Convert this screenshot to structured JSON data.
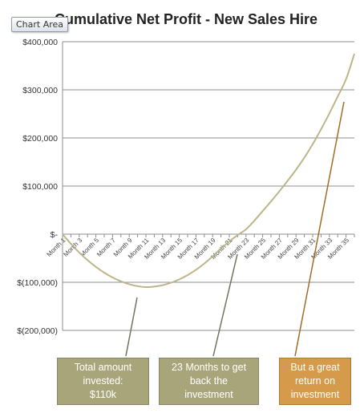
{
  "tooltip": "Chart Area",
  "chart_data": {
    "type": "line",
    "title": "Cumulative Net Profit - New Sales Hire",
    "xlabel": "",
    "ylabel": "",
    "ylim": [
      -200000,
      400000
    ],
    "yticks": [
      400000,
      300000,
      200000,
      100000,
      0,
      -100000,
      -200000
    ],
    "ytick_labels": [
      "$400,000",
      "$300,000",
      "$200,000",
      "$100,000",
      "$-",
      "$(100,000)",
      "$(200,000)"
    ],
    "xtick_labels": [
      "Month 1",
      "Month 3",
      "Month 5",
      "Month 7",
      "Month 9",
      "Month 11",
      "Month 13",
      "Month 15",
      "Month 17",
      "Month 19",
      "Month 21",
      "Month 23",
      "Month 25",
      "Month 27",
      "Month 29",
      "Month 31",
      "Month 33",
      "Month 35"
    ],
    "grid": "horizontal",
    "series": [
      {
        "color": "#bcb68a",
        "x": [
          1,
          2,
          3,
          4,
          5,
          6,
          7,
          8,
          9,
          10,
          11,
          12,
          13,
          14,
          15,
          16,
          17,
          18,
          19,
          20,
          21,
          22,
          23,
          24,
          25,
          26,
          27,
          28,
          29,
          30,
          31,
          32,
          33,
          34,
          35,
          36
        ],
        "y": [
          0,
          -20000,
          -38000,
          -54000,
          -68000,
          -80000,
          -90000,
          -98000,
          -104000,
          -108000,
          -110000,
          -109000,
          -106000,
          -101000,
          -94000,
          -85000,
          -74000,
          -61000,
          -46000,
          -30000,
          -15000,
          -2000,
          10000,
          28000,
          48000,
          68000,
          89000,
          111000,
          134000,
          159000,
          187000,
          218000,
          251000,
          286000,
          322000,
          375000
        ]
      }
    ]
  },
  "callouts": [
    {
      "text": "Total amount\ninvested:\n$110k",
      "color": "#a9a57a"
    },
    {
      "text": "23 Months  to get\nback the\ninvestment",
      "color": "#a9a57a"
    },
    {
      "text": "But a great\nreturn on\ninvestment",
      "color": "#d59a4a"
    }
  ]
}
